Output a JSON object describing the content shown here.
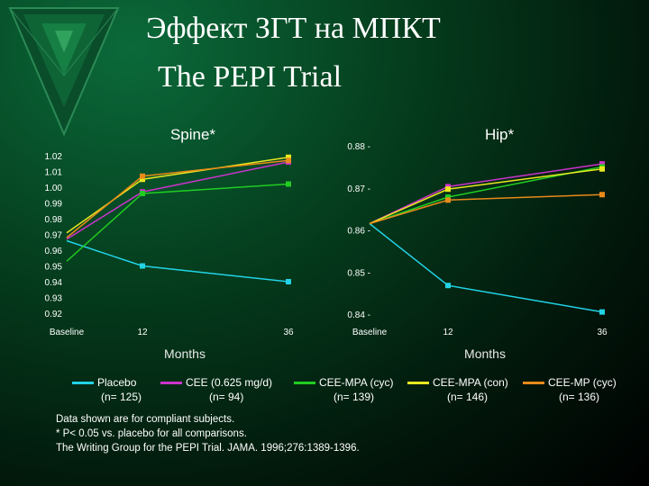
{
  "slide": {
    "title_line1": "Эффект ЗГТ на МПКТ",
    "title_line2": "The PEPI Trial"
  },
  "colors": {
    "placebo": "#22d3e6",
    "cee": "#cc33cc",
    "cee_mpa_cyc": "#22cc22",
    "cee_mpa_con": "#e8e820",
    "cee_mp_cyc": "#e88a1a"
  },
  "legend": [
    {
      "name": "Placebo",
      "n": "(n= 125)",
      "color_key": "placebo"
    },
    {
      "name": "CEE (0.625 mg/d)",
      "n": "(n= 94)",
      "color_key": "cee"
    },
    {
      "name": "CEE-MPA (cyc)",
      "n": "(n= 139)",
      "color_key": "cee_mpa_cyc"
    },
    {
      "name": "CEE-MPA (con)",
      "n": "(n= 146)",
      "color_key": "cee_mpa_con"
    },
    {
      "name": "CEE-MP (cyc)",
      "n": "(n= 136)",
      "color_key": "cee_mp_cyc"
    }
  ],
  "notes": {
    "line1": "Data shown are for compliant subjects.",
    "line2": "* P< 0.05 vs. placebo for all comparisons.",
    "line3": "The Writing Group for the PEPI Trial. JAMA. 1996;276:1389-1396."
  },
  "chart_data": [
    {
      "type": "line",
      "title": "Spine*",
      "xlabel": "Months",
      "x_ticks": [
        "Baseline",
        "12",
        "36"
      ],
      "x": [
        0,
        12,
        36
      ],
      "ylim": [
        0.92,
        1.02
      ],
      "y_ticks": [
        "1.02",
        "1.01",
        "1.00",
        "0.99",
        "0.98",
        "0.97",
        "0.96",
        "0.95",
        "0.94",
        "0.93",
        "0.92"
      ],
      "grid": false,
      "series": [
        {
          "name": "Placebo",
          "color_key": "placebo",
          "values": [
            0.966,
            0.95,
            0.94
          ]
        },
        {
          "name": "CEE (0.625 mg/d)",
          "color_key": "cee",
          "values": [
            0.967,
            0.997,
            1.016
          ]
        },
        {
          "name": "CEE-MPA (cyc)",
          "color_key": "cee_mpa_cyc",
          "values": [
            0.953,
            0.996,
            1.002
          ]
        },
        {
          "name": "CEE-MPA (con)",
          "color_key": "cee_mpa_con",
          "values": [
            0.971,
            1.005,
            1.019
          ]
        },
        {
          "name": "CEE-MP (cyc)",
          "color_key": "cee_mp_cyc",
          "values": [
            0.968,
            1.007,
            1.017
          ]
        }
      ]
    },
    {
      "type": "line",
      "title": "Hip*",
      "xlabel": "Months",
      "x_ticks": [
        "Baseline",
        "12",
        "36"
      ],
      "x": [
        0,
        12,
        36
      ],
      "ylim": [
        0.84,
        0.88
      ],
      "y_ticks": [
        "0.88",
        "0.87",
        "0.86",
        "0.85",
        "0.84"
      ],
      "grid": false,
      "series": [
        {
          "name": "Placebo",
          "color_key": "placebo",
          "values": [
            0.8615,
            0.8468,
            0.8405
          ]
        },
        {
          "name": "CEE (0.625 mg/d)",
          "color_key": "cee",
          "values": [
            0.8615,
            0.8703,
            0.8757
          ]
        },
        {
          "name": "CEE-MPA (cyc)",
          "color_key": "cee_mpa_cyc",
          "values": [
            0.8615,
            0.8678,
            0.875
          ]
        },
        {
          "name": "CEE-MPA (con)",
          "color_key": "cee_mpa_con",
          "values": [
            0.8615,
            0.8697,
            0.8745
          ]
        },
        {
          "name": "CEE-MP (cyc)",
          "color_key": "cee_mp_cyc",
          "values": [
            0.8615,
            0.8671,
            0.8684
          ]
        }
      ]
    }
  ]
}
